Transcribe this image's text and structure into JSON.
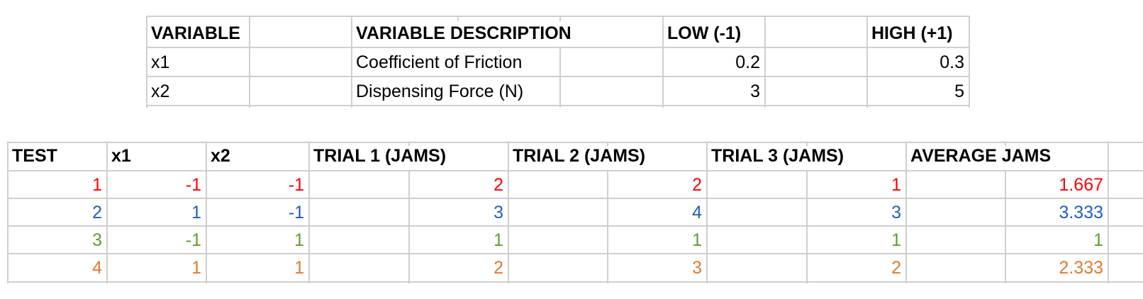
{
  "variables_table": {
    "headers": {
      "variable": "VARIABLE",
      "description": "VARIABLE DESCRIPTION",
      "low": "LOW (-1)",
      "high": "HIGH (+1)"
    },
    "rows": [
      {
        "variable": "x1",
        "description": "Coefficient of Friction",
        "low": "0.2",
        "high": "0.3"
      },
      {
        "variable": "x2",
        "description": "Dispensing Force (N)",
        "low": "3",
        "high": "5"
      }
    ]
  },
  "results_table": {
    "headers": {
      "test": "TEST",
      "x1": "x1",
      "x2": "x2",
      "trial1": "TRIAL 1 (JAMS)",
      "trial2": "TRIAL 2 (JAMS)",
      "trial3": "TRIAL 3 (JAMS)",
      "average": "AVERAGE JAMS"
    },
    "rows": [
      {
        "test": "1",
        "x1": "-1",
        "x2": "-1",
        "trial1": "2",
        "trial2": "2",
        "trial3": "1",
        "average": "1.667",
        "color": "#ff0000"
      },
      {
        "test": "2",
        "x1": "1",
        "x2": "-1",
        "trial1": "3",
        "trial2": "4",
        "trial3": "3",
        "average": "3.333",
        "color": "#1f5fbf"
      },
      {
        "test": "3",
        "x1": "-1",
        "x2": "1",
        "trial1": "1",
        "trial2": "1",
        "trial3": "1",
        "average": "1",
        "color": "#5b9e2f"
      },
      {
        "test": "4",
        "x1": "1",
        "x2": "1",
        "trial1": "2",
        "trial2": "3",
        "trial3": "2",
        "average": "2.333",
        "color": "#e27a2e"
      }
    ]
  }
}
